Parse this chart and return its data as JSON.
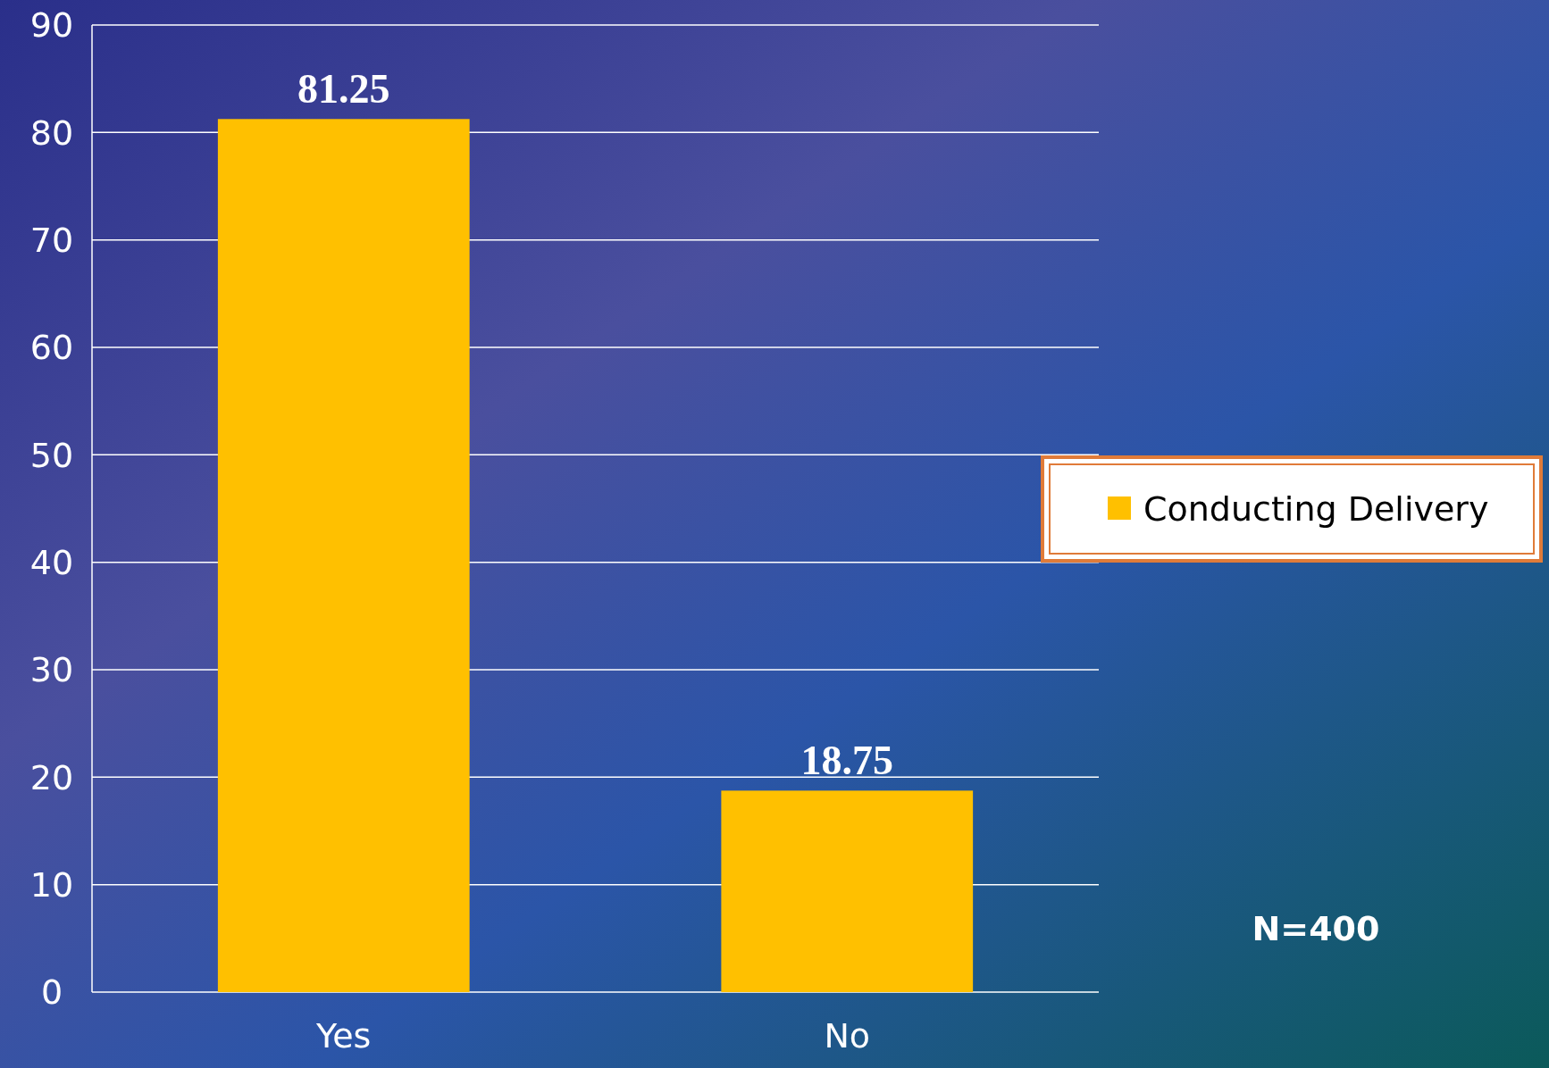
{
  "chart_data": {
    "type": "bar",
    "categories": [
      "Yes",
      "No"
    ],
    "series": [
      {
        "name": "Conducting Delivery",
        "color": "#ffc000",
        "values": [
          81.25,
          18.75
        ]
      }
    ],
    "ylim": [
      0,
      90
    ],
    "yticks": [
      0,
      10,
      20,
      30,
      40,
      50,
      60,
      70,
      80,
      90
    ],
    "grid": "y",
    "legend": "right",
    "data_labels": true,
    "annotations": [
      "N=400"
    ]
  }
}
